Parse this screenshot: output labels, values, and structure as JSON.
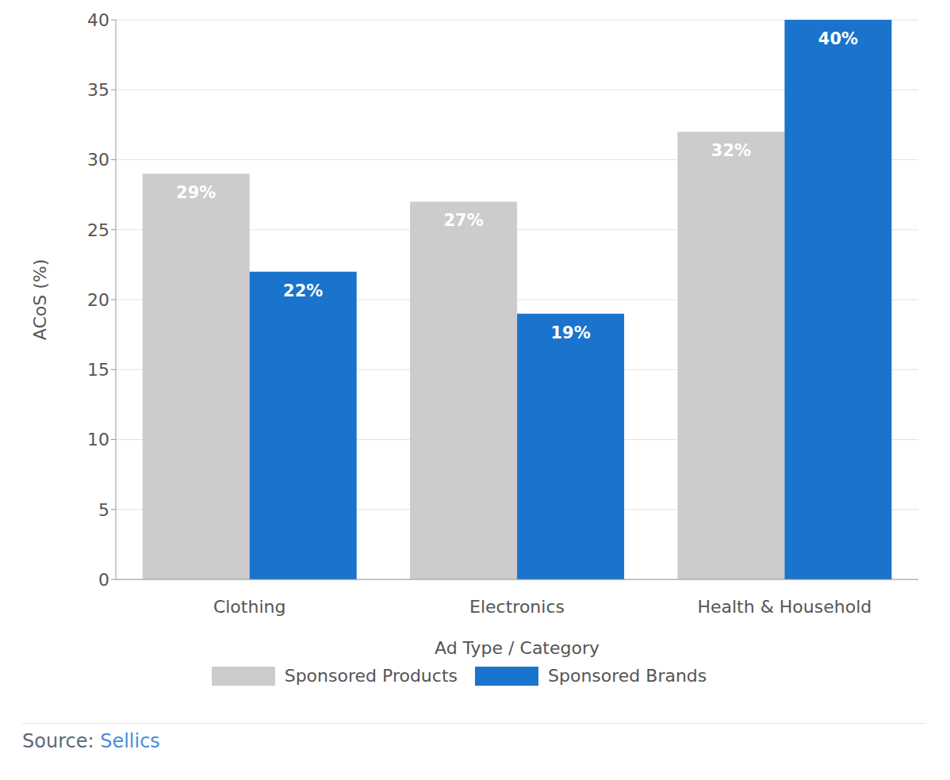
{
  "chart_data": {
    "type": "bar",
    "x_label": "Ad Type / Category",
    "y_label": "ACoS (%)",
    "categories": [
      "Clothing",
      "Electronics",
      "Health & Household"
    ],
    "series": [
      {
        "name": "Sponsored Products",
        "color": "#cccccc",
        "values": [
          29,
          27,
          32
        ],
        "value_labels": [
          "29%",
          "27%",
          "32%"
        ]
      },
      {
        "name": "Sponsored Brands",
        "color": "#1a73cc",
        "values": [
          22,
          19,
          40
        ],
        "value_labels": [
          "22%",
          "19%",
          "40%"
        ]
      }
    ],
    "ylim": [
      0,
      40
    ],
    "yticks": [
      0,
      5,
      10,
      15,
      20,
      25,
      30,
      35,
      40
    ],
    "grid": true,
    "data_labels": true,
    "legend": "bottom",
    "source_label": "Source:",
    "source": "Sellics"
  }
}
